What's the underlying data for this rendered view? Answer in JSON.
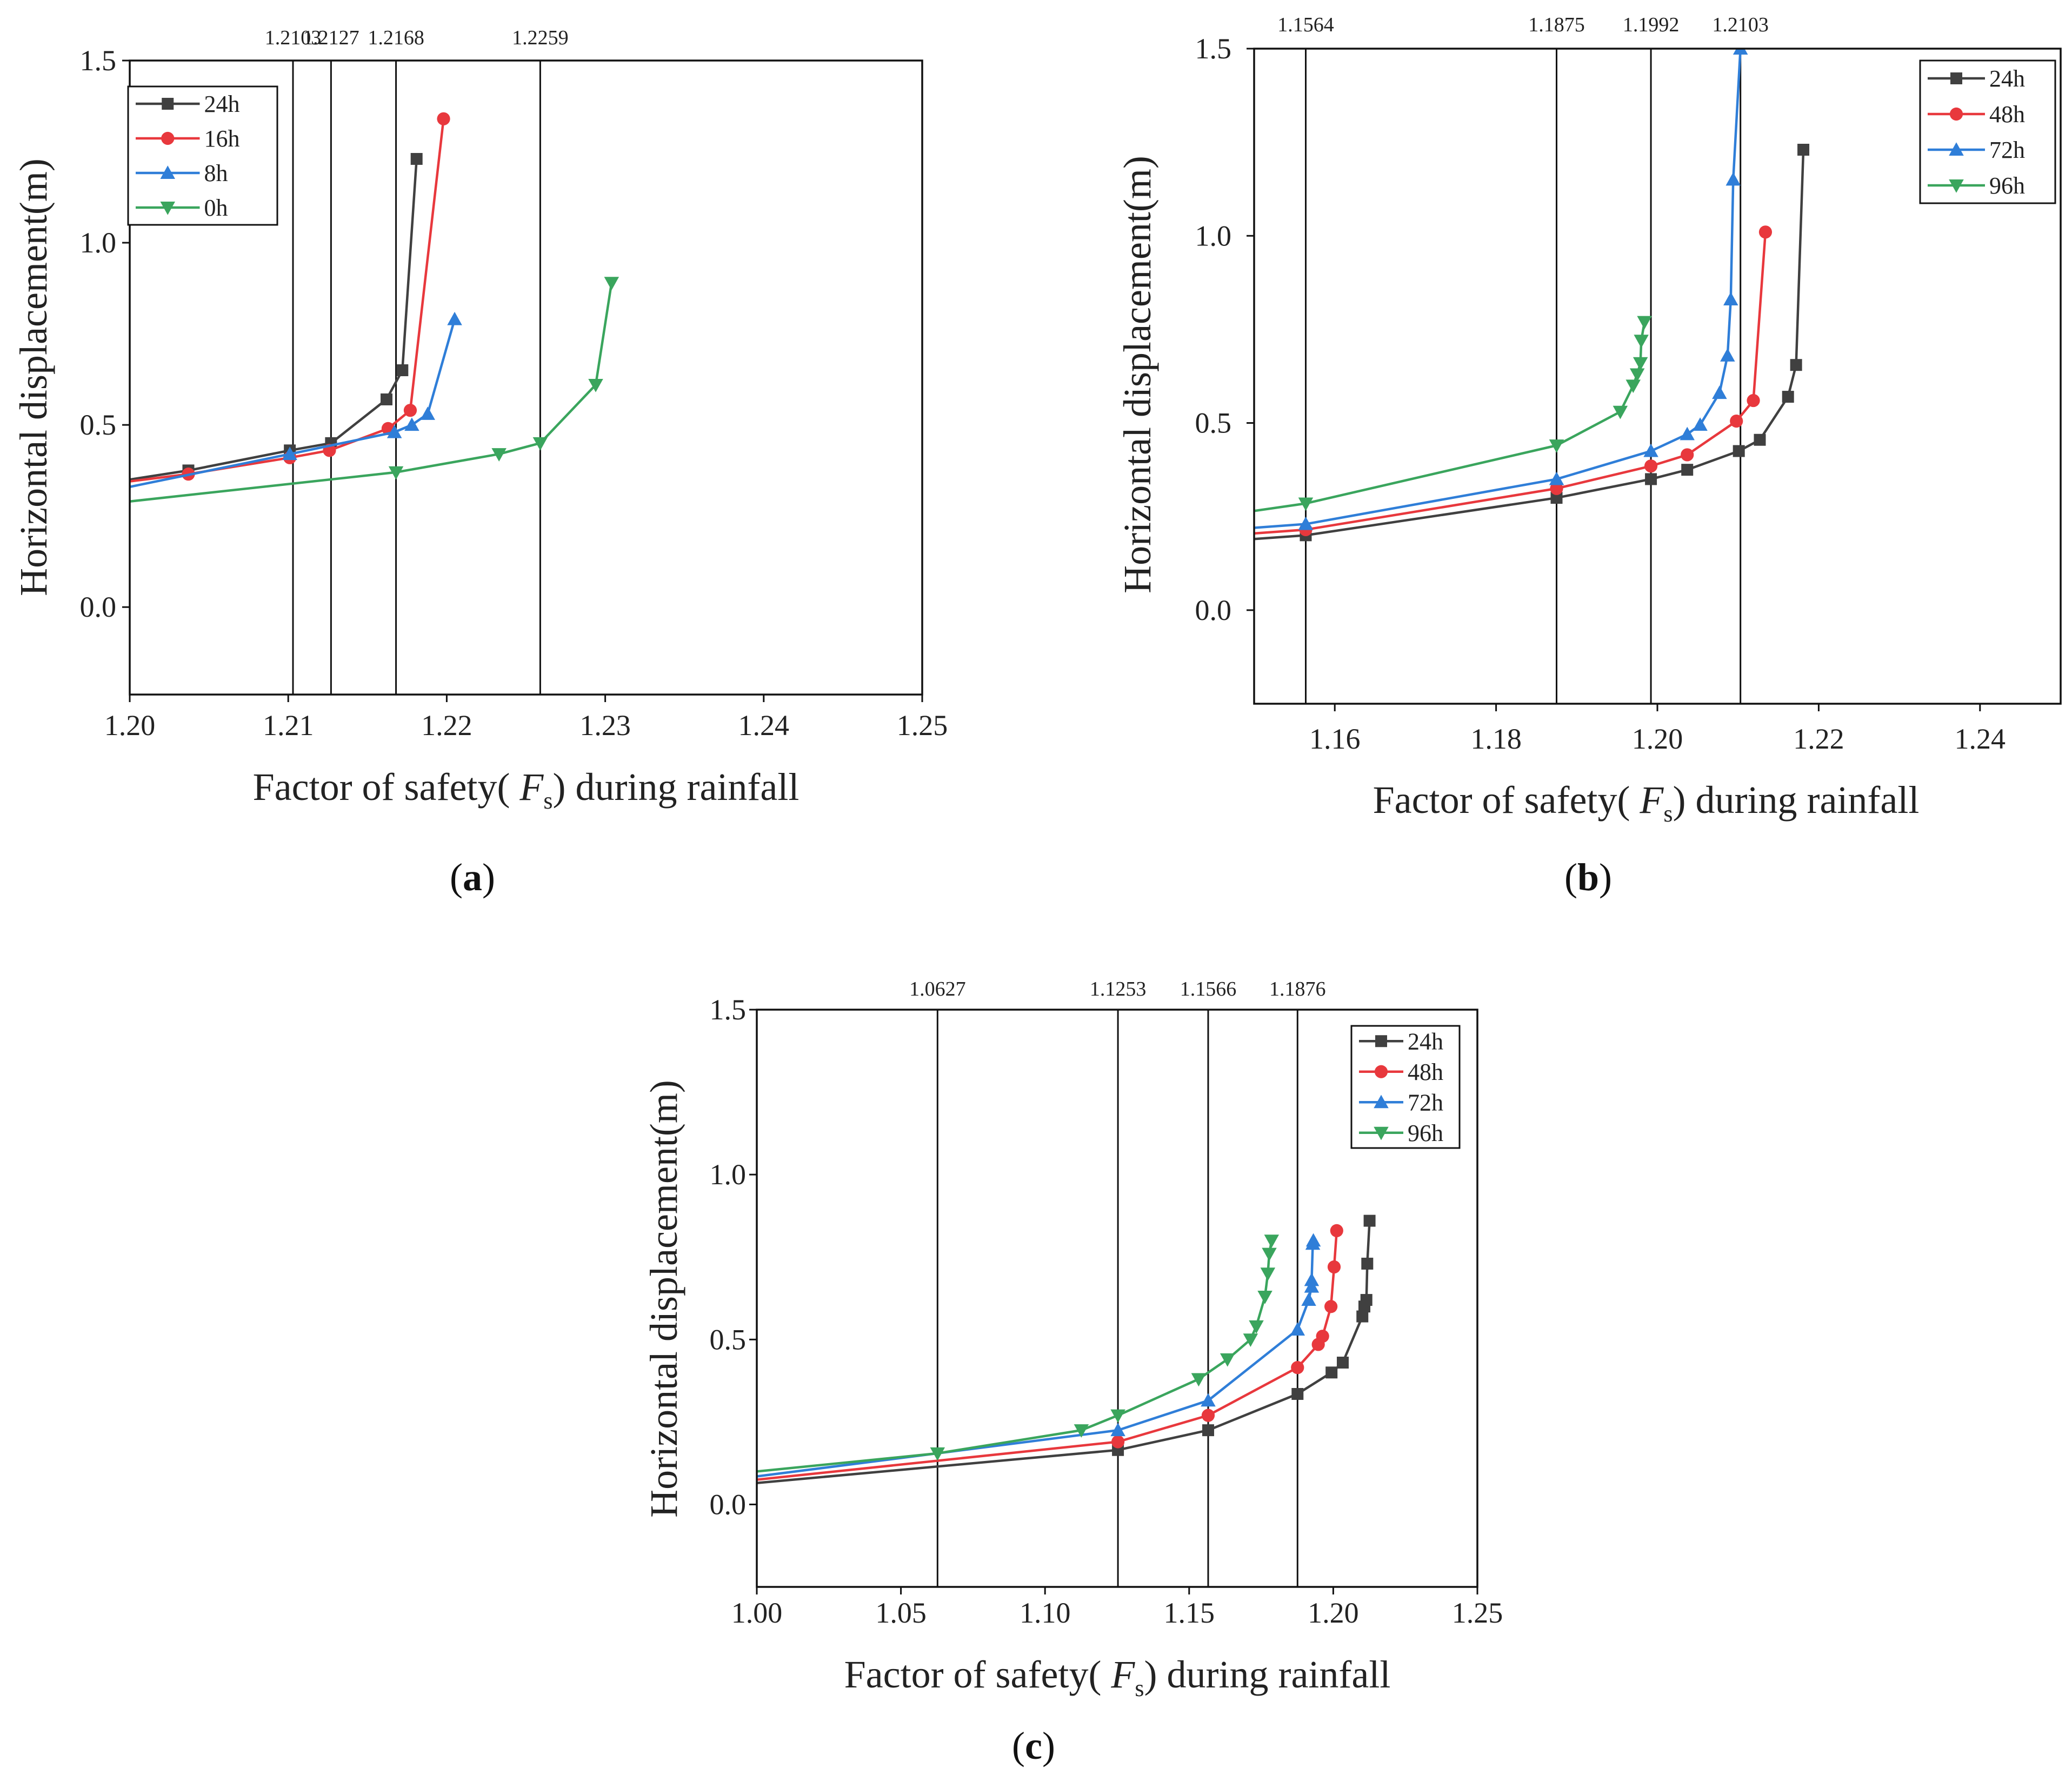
{
  "chart_data": [
    {
      "id": "a",
      "type": "line",
      "caption_letter": "a",
      "xlabel_pre": "Factor of safety( ",
      "xlabel_var": "F",
      "xlabel_sub": "s",
      "xlabel_post": ") during rainfall",
      "ylabel": "Horizontal displacement(m)",
      "xlim": [
        1.2,
        1.25
      ],
      "ylim": [
        -0.24,
        1.5
      ],
      "xticks": [
        1.2,
        1.21,
        1.22,
        1.23,
        1.24,
        1.25
      ],
      "xtick_labels": [
        "1.20",
        "1.21",
        "1.22",
        "1.23",
        "1.24",
        "1.25"
      ],
      "yticks": [
        0.0,
        0.5,
        1.0,
        1.5
      ],
      "ytick_labels": [
        "0.0",
        "0.5",
        "1.0",
        "1.5"
      ],
      "vlines": [
        {
          "x": 1.2103,
          "label": "1.2103"
        },
        {
          "x": 1.2127,
          "label": "1.2127"
        },
        {
          "x": 1.2168,
          "label": "1.2168"
        },
        {
          "x": 1.2259,
          "label": "1.2259"
        }
      ],
      "legend_position": "top-left",
      "series": [
        {
          "name": "24h",
          "color": "#404040",
          "marker": "square",
          "points": [
            [
              1.2,
              0.35
            ],
            [
              1.2037,
              0.375
            ],
            [
              1.2101,
              0.43
            ],
            [
              1.2127,
              0.45
            ],
            [
              1.2162,
              0.57
            ],
            [
              1.2172,
              0.65
            ],
            [
              1.2181,
              1.23
            ]
          ]
        },
        {
          "name": "16h",
          "color": "#e8383d",
          "marker": "circle",
          "points": [
            [
              1.2,
              0.345
            ],
            [
              1.2037,
              0.365
            ],
            [
              1.2101,
              0.41
            ],
            [
              1.2126,
              0.43
            ],
            [
              1.2163,
              0.49
            ],
            [
              1.2177,
              0.54
            ],
            [
              1.2198,
              1.34
            ]
          ]
        },
        {
          "name": "8h",
          "color": "#2f7ed8",
          "marker": "triangle-up",
          "points": [
            [
              1.2,
              0.33
            ],
            [
              1.2101,
              0.42
            ],
            [
              1.2167,
              0.48
            ],
            [
              1.2178,
              0.5
            ],
            [
              1.2188,
              0.53
            ],
            [
              1.2205,
              0.79
            ]
          ]
        },
        {
          "name": "0h",
          "color": "#3aa55d",
          "marker": "triangle-down",
          "points": [
            [
              1.2,
              0.29
            ],
            [
              1.2168,
              0.37
            ],
            [
              1.2233,
              0.42
            ],
            [
              1.2259,
              0.45
            ],
            [
              1.2294,
              0.61
            ],
            [
              1.2304,
              0.89
            ]
          ]
        }
      ]
    },
    {
      "id": "b",
      "type": "line",
      "caption_letter": "b",
      "xlabel_pre": "Factor of safety( ",
      "xlabel_var": "F",
      "xlabel_sub": "s",
      "xlabel_post": ") during rainfall",
      "ylabel": "Horizontal displacement(m)",
      "xlim": [
        1.15,
        1.25
      ],
      "ylim": [
        -0.25,
        1.5
      ],
      "xticks": [
        1.16,
        1.18,
        1.2,
        1.22,
        1.24
      ],
      "xtick_labels": [
        "1.16",
        "1.18",
        "1.20",
        "1.22",
        "1.24"
      ],
      "yticks": [
        0.0,
        0.5,
        1.0,
        1.5
      ],
      "ytick_labels": [
        "0.0",
        "0.5",
        "1.0",
        "1.5"
      ],
      "vlines": [
        {
          "x": 1.1564,
          "label": "1.1564"
        },
        {
          "x": 1.1875,
          "label": "1.1875"
        },
        {
          "x": 1.1992,
          "label": "1.1992"
        },
        {
          "x": 1.2103,
          "label": "1.2103"
        }
      ],
      "legend_position": "top-right",
      "series": [
        {
          "name": "24h",
          "color": "#404040",
          "marker": "square",
          "points": [
            [
              1.15,
              0.19
            ],
            [
              1.1564,
              0.2
            ],
            [
              1.1875,
              0.3
            ],
            [
              1.1992,
              0.35
            ],
            [
              1.2037,
              0.375
            ],
            [
              1.2101,
              0.425
            ],
            [
              1.2127,
              0.455
            ],
            [
              1.2162,
              0.57
            ],
            [
              1.2172,
              0.655
            ],
            [
              1.2181,
              1.23
            ]
          ]
        },
        {
          "name": "48h",
          "color": "#e8383d",
          "marker": "circle",
          "points": [
            [
              1.15,
              0.205
            ],
            [
              1.1564,
              0.215
            ],
            [
              1.1875,
              0.325
            ],
            [
              1.1992,
              0.385
            ],
            [
              1.2037,
              0.415
            ],
            [
              1.2098,
              0.505
            ],
            [
              1.2119,
              0.56
            ],
            [
              1.2134,
              1.01
            ]
          ]
        },
        {
          "name": "72h",
          "color": "#2f7ed8",
          "marker": "triangle-up",
          "points": [
            [
              1.15,
              0.22
            ],
            [
              1.1564,
              0.23
            ],
            [
              1.1875,
              0.35
            ],
            [
              1.1992,
              0.425
            ],
            [
              1.2037,
              0.47
            ],
            [
              1.2053,
              0.495
            ],
            [
              1.2077,
              0.58
            ],
            [
              1.2087,
              0.68
            ],
            [
              1.2091,
              0.83
            ],
            [
              1.2094,
              1.15
            ],
            [
              1.2103,
              1.5
            ]
          ]
        },
        {
          "name": "96h",
          "color": "#3aa55d",
          "marker": "triangle-down",
          "points": [
            [
              1.15,
              0.265
            ],
            [
              1.1564,
              0.285
            ],
            [
              1.1875,
              0.44
            ],
            [
              1.1954,
              0.53
            ],
            [
              1.197,
              0.6
            ],
            [
              1.1975,
              0.63
            ],
            [
              1.1979,
              0.66
            ],
            [
              1.198,
              0.72
            ],
            [
              1.1984,
              0.77
            ]
          ]
        }
      ]
    },
    {
      "id": "c",
      "type": "line",
      "caption_letter": "c",
      "xlabel_pre": "Factor of safety( ",
      "xlabel_var": "F",
      "xlabel_sub": "s",
      "xlabel_post": ") during rainfall",
      "ylabel": "Horizontal displacement(m)",
      "xlim": [
        1.0,
        1.25
      ],
      "ylim": [
        -0.25,
        1.5
      ],
      "xticks": [
        1.0,
        1.05,
        1.1,
        1.15,
        1.2,
        1.25
      ],
      "xtick_labels": [
        "1.00",
        "1.05",
        "1.10",
        "1.15",
        "1.20",
        "1.25"
      ],
      "yticks": [
        0.0,
        0.5,
        1.0,
        1.5
      ],
      "ytick_labels": [
        "0.0",
        "0.5",
        "1.0",
        "1.5"
      ],
      "vlines": [
        {
          "x": 1.0627,
          "label": "1.0627"
        },
        {
          "x": 1.1253,
          "label": "1.1253"
        },
        {
          "x": 1.1566,
          "label": "1.1566"
        },
        {
          "x": 1.1876,
          "label": "1.1876"
        }
      ],
      "legend_position": "top-right",
      "series": [
        {
          "name": "24h",
          "color": "#404040",
          "marker": "square",
          "points": [
            [
              1.0,
              0.065
            ],
            [
              1.1253,
              0.165
            ],
            [
              1.1566,
              0.225
            ],
            [
              1.1876,
              0.335
            ],
            [
              1.1994,
              0.4
            ],
            [
              1.2033,
              0.43
            ],
            [
              1.2101,
              0.57
            ],
            [
              1.2108,
              0.6
            ],
            [
              1.2115,
              0.62
            ],
            [
              1.2118,
              0.73
            ],
            [
              1.2126,
              0.86
            ]
          ]
        },
        {
          "name": "48h",
          "color": "#e8383d",
          "marker": "circle",
          "points": [
            [
              1.0,
              0.075
            ],
            [
              1.1253,
              0.19
            ],
            [
              1.1566,
              0.27
            ],
            [
              1.1876,
              0.415
            ],
            [
              1.1948,
              0.485
            ],
            [
              1.1963,
              0.51
            ],
            [
              1.1992,
              0.6
            ],
            [
              1.2003,
              0.72
            ],
            [
              1.2012,
              0.83
            ]
          ]
        },
        {
          "name": "72h",
          "color": "#2f7ed8",
          "marker": "triangle-up",
          "points": [
            [
              1.0,
              0.085
            ],
            [
              1.1253,
              0.225
            ],
            [
              1.1566,
              0.315
            ],
            [
              1.1876,
              0.53
            ],
            [
              1.1915,
              0.62
            ],
            [
              1.1925,
              0.66
            ],
            [
              1.1925,
              0.68
            ],
            [
              1.1929,
              0.79
            ],
            [
              1.1931,
              0.8
            ]
          ]
        },
        {
          "name": "96h",
          "color": "#3aa55d",
          "marker": "triangle-down",
          "points": [
            [
              1.0,
              0.1
            ],
            [
              1.0627,
              0.155
            ],
            [
              1.1126,
              0.225
            ],
            [
              1.1253,
              0.27
            ],
            [
              1.1533,
              0.38
            ],
            [
              1.1633,
              0.44
            ],
            [
              1.1713,
              0.5
            ],
            [
              1.1733,
              0.54
            ],
            [
              1.1763,
              0.63
            ],
            [
              1.1773,
              0.7
            ],
            [
              1.1778,
              0.76
            ],
            [
              1.1786,
              0.8
            ]
          ]
        }
      ]
    }
  ]
}
